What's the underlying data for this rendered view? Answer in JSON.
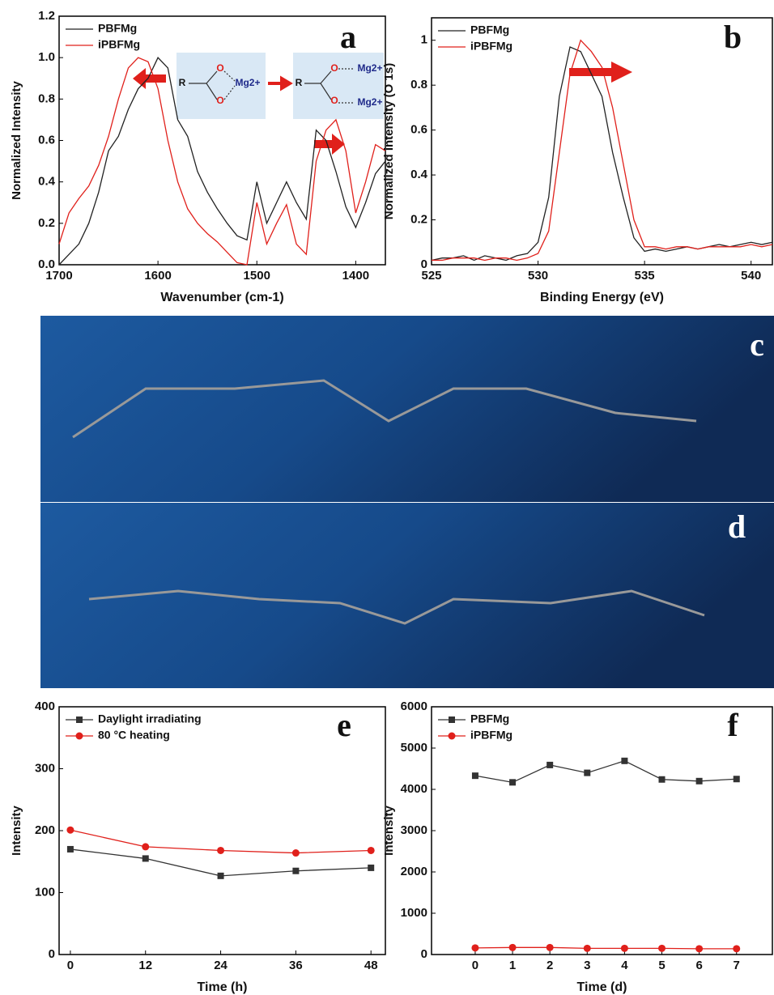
{
  "chart_data": [
    {
      "type": "line",
      "label": "a",
      "xlabel": "Wavenumber (cm-1)",
      "ylabel": "Normalized Intensity",
      "x": [
        1700,
        1690,
        1680,
        1670,
        1660,
        1650,
        1640,
        1630,
        1620,
        1610,
        1600,
        1590,
        1580,
        1570,
        1560,
        1550,
        1540,
        1530,
        1520,
        1510,
        1500,
        1490,
        1480,
        1470,
        1460,
        1450,
        1440,
        1430,
        1420,
        1410,
        1400,
        1390,
        1380,
        1370
      ],
      "series": [
        {
          "name": "PBFMg",
          "color": "#222222",
          "values": [
            0.0,
            0.05,
            0.1,
            0.2,
            0.35,
            0.55,
            0.62,
            0.75,
            0.85,
            0.9,
            1.0,
            0.95,
            0.7,
            0.62,
            0.45,
            0.35,
            0.27,
            0.2,
            0.14,
            0.12,
            0.4,
            0.2,
            0.3,
            0.4,
            0.3,
            0.22,
            0.65,
            0.6,
            0.45,
            0.28,
            0.18,
            0.3,
            0.44,
            0.5
          ]
        },
        {
          "name": "iPBFMg",
          "color": "#e0201b",
          "values": [
            0.1,
            0.25,
            0.32,
            0.38,
            0.48,
            0.62,
            0.8,
            0.95,
            1.0,
            0.98,
            0.85,
            0.6,
            0.4,
            0.27,
            0.2,
            0.15,
            0.11,
            0.06,
            0.01,
            0.0,
            0.3,
            0.1,
            0.2,
            0.29,
            0.1,
            0.05,
            0.5,
            0.65,
            0.7,
            0.55,
            0.25,
            0.4,
            0.58,
            0.55
          ]
        }
      ],
      "xlim": [
        1700,
        1370
      ],
      "xticks": [
        1700,
        1600,
        1500,
        1400
      ],
      "ylim": [
        0,
        1.2
      ],
      "yticks": [
        {
          "value": 0,
          "label": "0.0"
        },
        0.2,
        0.4,
        0.6,
        0.8,
        {
          "value": 1,
          "label": "1.0"
        },
        1.2
      ],
      "legend": "top-left",
      "annotations": [
        "R",
        "O",
        "O",
        "Mg2+",
        "R",
        "O",
        "O",
        "Mg2+",
        "Mg2+"
      ]
    },
    {
      "type": "line",
      "label": "b",
      "xlabel": "Binding Energy (eV)",
      "ylabel": "Normalized intensity (O 1s)",
      "x": [
        525,
        525.5,
        526,
        526.5,
        527,
        527.5,
        528,
        528.5,
        529,
        529.5,
        530,
        530.5,
        531,
        531.5,
        532,
        532.5,
        533,
        533.5,
        534,
        534.5,
        535,
        535.5,
        536,
        536.5,
        537,
        537.5,
        538,
        538.5,
        539,
        539.5,
        540,
        540.5,
        541
      ],
      "series": [
        {
          "name": "PBFMg",
          "color": "#222222",
          "values": [
            0.02,
            0.03,
            0.03,
            0.04,
            0.02,
            0.04,
            0.03,
            0.02,
            0.04,
            0.05,
            0.1,
            0.3,
            0.75,
            0.97,
            0.95,
            0.85,
            0.75,
            0.5,
            0.3,
            0.12,
            0.06,
            0.07,
            0.06,
            0.07,
            0.08,
            0.07,
            0.08,
            0.09,
            0.08,
            0.09,
            0.1,
            0.09,
            0.1
          ]
        },
        {
          "name": "iPBFMg",
          "color": "#e0201b",
          "values": [
            0.02,
            0.02,
            0.03,
            0.03,
            0.03,
            0.02,
            0.03,
            0.03,
            0.02,
            0.03,
            0.05,
            0.15,
            0.5,
            0.85,
            1.0,
            0.95,
            0.88,
            0.7,
            0.45,
            0.2,
            0.08,
            0.08,
            0.07,
            0.08,
            0.08,
            0.07,
            0.08,
            0.08,
            0.08,
            0.08,
            0.09,
            0.08,
            0.09
          ]
        }
      ],
      "xlim": [
        525,
        541
      ],
      "xticks": [
        525,
        530,
        535,
        540
      ],
      "ylim": [
        0,
        1.1
      ],
      "yticks": [
        0,
        0.2,
        0.4,
        0.6,
        0.8,
        1
      ],
      "legend": "top-left"
    },
    {
      "type": "line",
      "label": "e",
      "xlabel": "Time (h)",
      "ylabel": "Intensity",
      "x": [
        0,
        12,
        24,
        36,
        48
      ],
      "series": [
        {
          "name": "Daylight irradiating",
          "color": "#333333",
          "marker": "square",
          "values": [
            170,
            155,
            127,
            135,
            140
          ]
        },
        {
          "name": "80 °C heating",
          "color": "#e0201b",
          "marker": "circle",
          "values": [
            201,
            174,
            168,
            164,
            168
          ]
        }
      ],
      "xlim": [
        -1.8,
        50.3
      ],
      "xticks": [
        0,
        12,
        24,
        36,
        48
      ],
      "ylim": [
        0,
        400
      ],
      "yticks": [
        0,
        100,
        200,
        300,
        400
      ],
      "legend": "top-left"
    },
    {
      "type": "line",
      "label": "f",
      "xlabel": "Time (d)",
      "ylabel": "Intensity",
      "x": [
        0,
        1,
        2,
        3,
        4,
        5,
        6,
        7
      ],
      "series": [
        {
          "name": "PBFMg",
          "color": "#333333",
          "marker": "square",
          "values": [
            4330,
            4170,
            4590,
            4400,
            4690,
            4240,
            4200,
            4250
          ]
        },
        {
          "name": "iPBFMg",
          "color": "#e0201b",
          "marker": "circle",
          "values": [
            160,
            170,
            170,
            150,
            150,
            150,
            140,
            140
          ]
        }
      ],
      "xlim": [
        -1.17,
        7.96
      ],
      "xticks": [
        0,
        1,
        2,
        3,
        4,
        5,
        6,
        7
      ],
      "ylim": [
        0,
        6000
      ],
      "yticks": [
        0,
        1000,
        2000,
        3000,
        4000,
        5000,
        6000
      ],
      "legend": "top-left"
    }
  ],
  "images": [
    {
      "label": "c"
    },
    {
      "label": "d"
    }
  ]
}
